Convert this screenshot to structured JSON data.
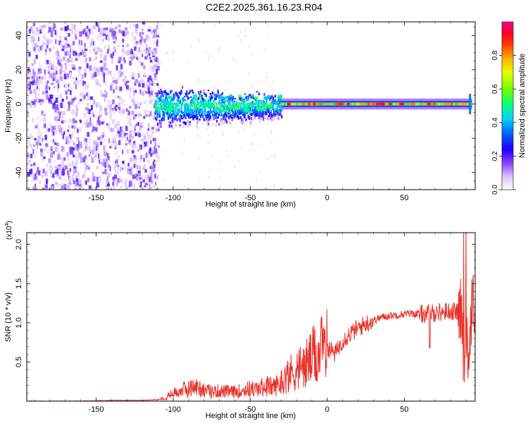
{
  "title": "C2E2.2025.361.16.23.R04",
  "chart_data": [
    {
      "type": "heatmap",
      "xlabel": "Height of straight line (km)",
      "ylabel": "Frequency (Hz)",
      "xlim": [
        -195,
        96
      ],
      "ylim": [
        -50,
        48
      ],
      "xticks": [
        -150,
        -100,
        -50,
        0,
        50
      ],
      "yticks": [
        -40,
        -20,
        0,
        20,
        40
      ],
      "colorbar": {
        "label": "Normalized spectral amplitude",
        "range": [
          0,
          1
        ],
        "ticks": [
          "0.0",
          "0.2",
          "0.4",
          "0.6",
          "0.8"
        ],
        "colors": [
          "#ffffff",
          "#b890ff",
          "#5a00e0",
          "#0010ff",
          "#00ccff",
          "#00ff70",
          "#9cff00",
          "#ffee00",
          "#ff8800",
          "#ff0000",
          "#ff0090"
        ]
      },
      "regions": [
        {
          "x_range": [
            -195,
            -112
          ],
          "y_range": [
            -50,
            48
          ],
          "level": 0.12,
          "note": "broadband noise"
        },
        {
          "x_range": [
            -112,
            -30
          ],
          "y_range": [
            -12,
            8
          ],
          "level": 0.35,
          "note": "wide spectral spread"
        },
        {
          "x_range": [
            -30,
            93
          ],
          "y_range": [
            -3,
            3
          ],
          "level": 0.85,
          "note": "narrow line at 0 Hz"
        }
      ]
    },
    {
      "type": "line",
      "xlabel": "Height of straight line (km)",
      "ylabel": "SNR (10 * v/v)",
      "yscale_label": "(x10",
      "yscale_exp": "4",
      "xlim": [
        -195,
        96
      ],
      "ylim": [
        0,
        2.15
      ],
      "xticks": [
        -150,
        -100,
        -50,
        0,
        50
      ],
      "yticks": [
        "0.5",
        "1.0",
        "1.5",
        "2.0"
      ],
      "ytick_values": [
        0.5,
        1.0,
        1.5,
        2.0
      ],
      "color": "#e8322a",
      "series": [
        {
          "x": [
            -195,
            -180,
            -160,
            -140,
            -120,
            -110,
            -105,
            -100,
            -95,
            -90,
            -85,
            -80,
            -75,
            -70,
            -65,
            -60,
            -55,
            -50,
            -45,
            -40,
            -35,
            -30,
            -25,
            -20,
            -15,
            -10,
            -5,
            0,
            5,
            10,
            15,
            20,
            25,
            30,
            35,
            40,
            45,
            50,
            55,
            60,
            65,
            70,
            75,
            80,
            85,
            88,
            90,
            92,
            94,
            96
          ],
          "values": [
            0.0,
            0.0,
            0.0,
            0.01,
            0.01,
            0.02,
            0.05,
            0.1,
            0.14,
            0.16,
            0.18,
            0.15,
            0.12,
            0.13,
            0.12,
            0.12,
            0.14,
            0.16,
            0.15,
            0.2,
            0.18,
            0.24,
            0.35,
            0.4,
            0.45,
            0.55,
            0.62,
            0.7,
            0.6,
            0.78,
            0.86,
            0.93,
            0.99,
            1.03,
            1.07,
            1.09,
            1.1,
            1.11,
            1.12,
            1.11,
            1.12,
            1.13,
            1.14,
            1.15,
            1.14,
            1.1,
            0.85,
            0.5,
            1.3,
            1.1
          ]
        }
      ]
    }
  ]
}
